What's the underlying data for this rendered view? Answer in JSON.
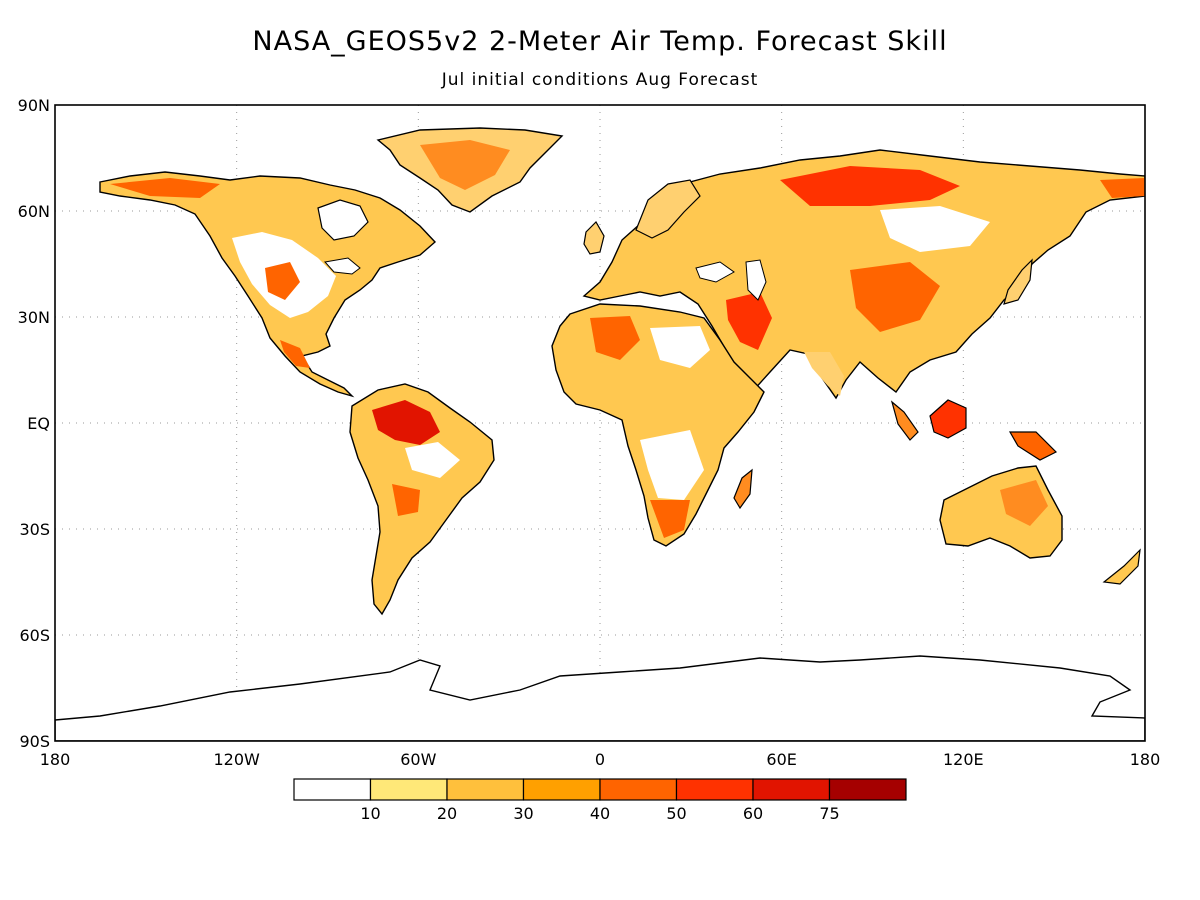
{
  "title": "NASA_GEOS5v2 2-Meter Air Temp. Forecast Skill",
  "subtitle": "Jul initial conditions  Aug Forecast",
  "map": {
    "projection": "equirectangular",
    "lon_range": [
      -180,
      180
    ],
    "lat_range": [
      -90,
      90
    ],
    "grid": "dotted",
    "lat_labels": [
      {
        "value": 90,
        "text": "90N"
      },
      {
        "value": 60,
        "text": "60N"
      },
      {
        "value": 30,
        "text": "30N"
      },
      {
        "value": 0,
        "text": "EQ"
      },
      {
        "value": -30,
        "text": "30S"
      },
      {
        "value": -60,
        "text": "60S"
      },
      {
        "value": -90,
        "text": "90S"
      }
    ],
    "lon_labels": [
      {
        "value": -180,
        "text": "180"
      },
      {
        "value": -120,
        "text": "120W"
      },
      {
        "value": -60,
        "text": "60W"
      },
      {
        "value": 0,
        "text": "0"
      },
      {
        "value": 60,
        "text": "60E"
      },
      {
        "value": 120,
        "text": "120E"
      },
      {
        "value": 180,
        "text": "180"
      }
    ]
  },
  "legend": {
    "bins": [
      {
        "color": "#ffffff"
      },
      {
        "color": "#ffe878"
      },
      {
        "color": "#ffc03c"
      },
      {
        "color": "#ffa000"
      },
      {
        "color": "#ff6400"
      },
      {
        "color": "#ff3200"
      },
      {
        "color": "#e11400"
      },
      {
        "color": "#a50000"
      }
    ],
    "labels": [
      "10",
      "20",
      "30",
      "40",
      "50",
      "60",
      "75"
    ]
  }
}
